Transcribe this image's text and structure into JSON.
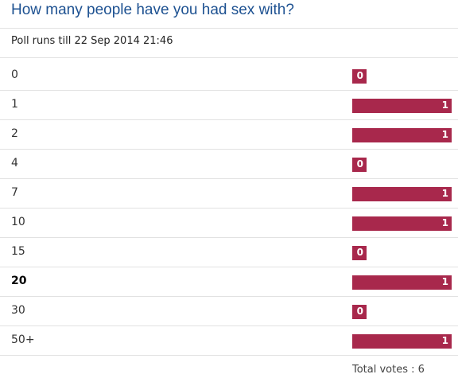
{
  "poll": {
    "title": "How many people have you had sex with?",
    "subtitle": "Poll runs till 22 Sep 2014 21:46",
    "bar_color": "#a8284c",
    "options": [
      {
        "label": "0",
        "votes": 0
      },
      {
        "label": "1",
        "votes": 1
      },
      {
        "label": "2",
        "votes": 1
      },
      {
        "label": "4",
        "votes": 0
      },
      {
        "label": "7",
        "votes": 1
      },
      {
        "label": "10",
        "votes": 1
      },
      {
        "label": "15",
        "votes": 0
      },
      {
        "label": "20",
        "votes": 1,
        "bold": true
      },
      {
        "label": "30",
        "votes": 0
      },
      {
        "label": "50+",
        "votes": 1
      }
    ],
    "total_label": "Total votes :",
    "total_votes": 6
  }
}
